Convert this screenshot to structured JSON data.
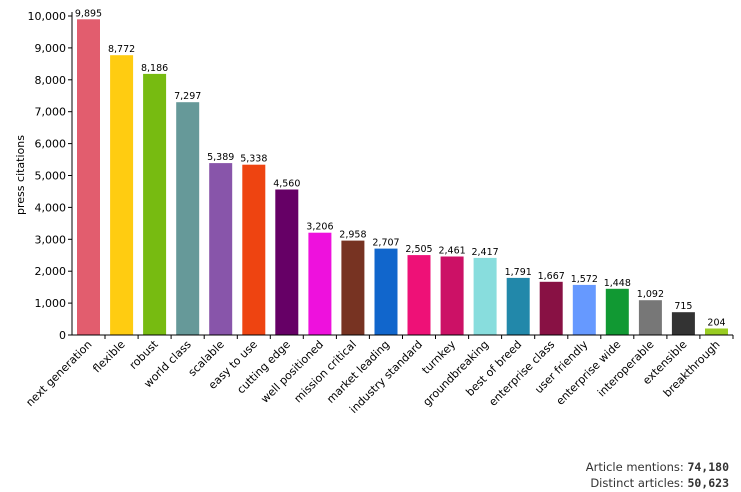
{
  "chart_data": {
    "type": "bar",
    "ylabel": "press citations",
    "xlabel": "",
    "ylim": [
      0,
      10000
    ],
    "yticks": [
      0,
      1000,
      2000,
      3000,
      4000,
      5000,
      6000,
      7000,
      8000,
      9000,
      10000
    ],
    "ytick_labels": [
      "0",
      "1,000",
      "2,000",
      "3,000",
      "4,000",
      "5,000",
      "6,000",
      "7,000",
      "8,000",
      "9,000",
      "10,000"
    ],
    "grid": false,
    "categories": [
      "next generation",
      "flexible",
      "robust",
      "world class",
      "scalable",
      "easy to use",
      "cutting edge",
      "well positioned",
      "mission critical",
      "market leading",
      "industry standard",
      "turnkey",
      "groundbreaking",
      "best of breed",
      "enterprise class",
      "user friendly",
      "enterprise wide",
      "interoperable",
      "extensible",
      "breakthrough"
    ],
    "values": [
      9895,
      8772,
      8186,
      7297,
      5389,
      5338,
      4560,
      3206,
      2958,
      2707,
      2505,
      2461,
      2417,
      1791,
      1667,
      1572,
      1448,
      1092,
      715,
      204
    ],
    "value_labels": [
      "9,895",
      "8,772",
      "8,186",
      "7,297",
      "5,389",
      "5,338",
      "4,560",
      "3,206",
      "2,958",
      "2,707",
      "2,505",
      "2,461",
      "2,417",
      "1,791",
      "1,667",
      "1,572",
      "1,448",
      "1,092",
      "715",
      "204"
    ],
    "colors": [
      "#e25d6e",
      "#ffcc11",
      "#77bb11",
      "#669999",
      "#8855aa",
      "#ee4411",
      "#660066",
      "#ee11dd",
      "#773322",
      "#1166cc",
      "#ee1177",
      "#cc1166",
      "#88dddd",
      "#2288aa",
      "#881144",
      "#6699ff",
      "#119933",
      "#777777",
      "#333333",
      "#99cc22"
    ]
  },
  "stats": {
    "mentions_label": "Article mentions:",
    "mentions_value": "74,180",
    "distinct_label": "Distinct articles:",
    "distinct_value": "50,623"
  }
}
